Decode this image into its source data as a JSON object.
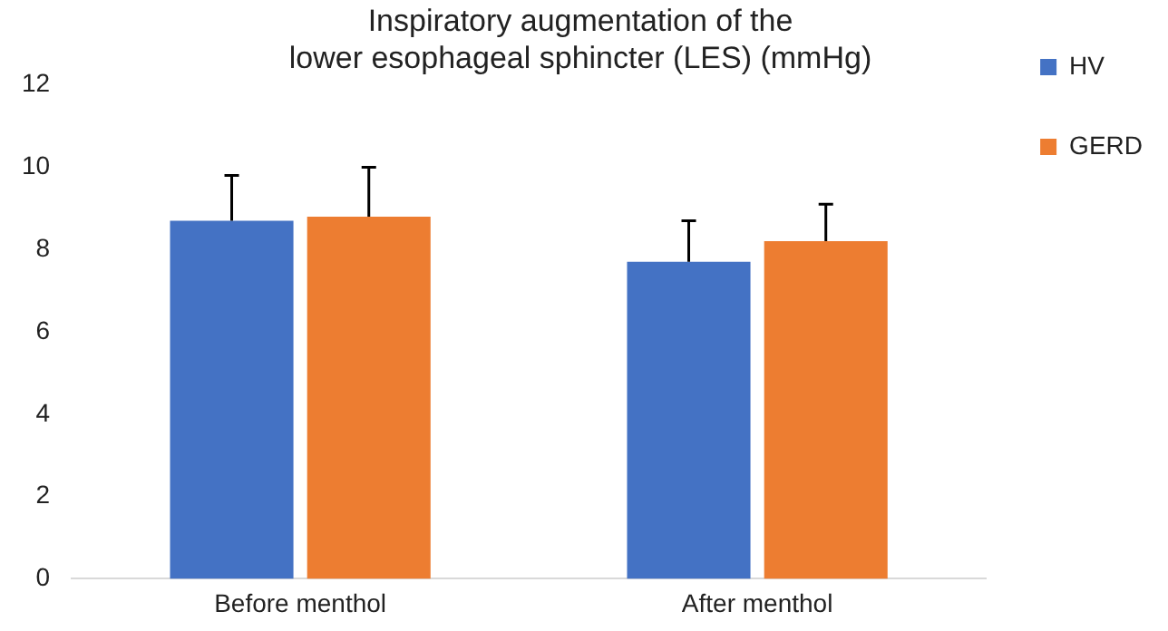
{
  "chart_data": {
    "type": "bar",
    "title": [
      "Inspiratory augmentation of the",
      "lower esophageal sphincter (LES) (mmHg)"
    ],
    "categories": [
      "Before menthol",
      "After menthol"
    ],
    "series": [
      {
        "name": "HV",
        "color": "#4472c4",
        "values": [
          8.7,
          7.7
        ],
        "errors": [
          [
            8.7,
            9.8
          ],
          [
            7.7,
            8.7
          ]
        ]
      },
      {
        "name": "GERD",
        "color": "#ed7d31",
        "values": [
          8.8,
          8.2
        ],
        "errors": [
          [
            8.8,
            10.0
          ],
          [
            8.2,
            9.1
          ]
        ]
      }
    ],
    "ylim": [
      0,
      12
    ],
    "yticks": [
      0,
      2,
      4,
      6,
      8,
      10,
      12
    ],
    "grid": false,
    "legend": "right"
  }
}
